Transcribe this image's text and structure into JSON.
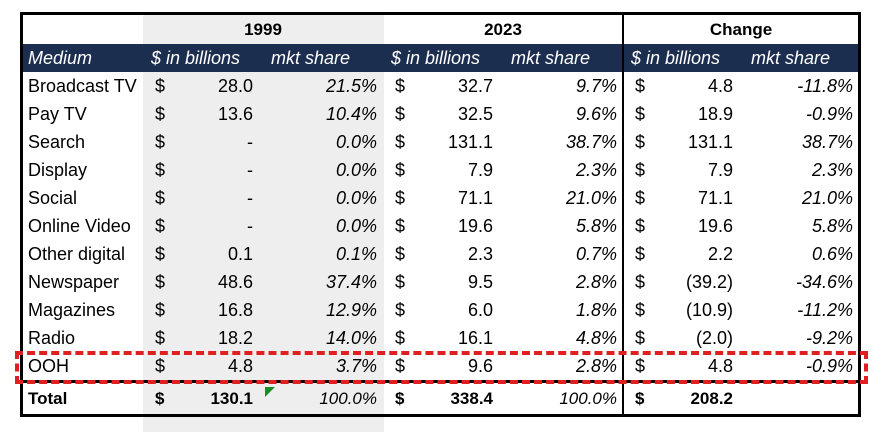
{
  "groups": {
    "y1999": "1999",
    "y2023": "2023",
    "change": "Change"
  },
  "subheaders": {
    "medium": "Medium",
    "b1999": "$ in billions",
    "s1999": "mkt share",
    "b2023": "$ in billions",
    "s2023": "mkt share",
    "bchg": "$ in billions",
    "schg": "mkt share"
  },
  "currency": "$",
  "rows": [
    {
      "medium": "Broadcast TV",
      "v1999": "28.0",
      "s1999": "21.5%",
      "v2023": "32.7",
      "s2023": "9.7%",
      "vchg": "4.8",
      "schg": "-11.8%"
    },
    {
      "medium": "Pay TV",
      "v1999": "13.6",
      "s1999": "10.4%",
      "v2023": "32.5",
      "s2023": "9.6%",
      "vchg": "18.9",
      "schg": "-0.9%"
    },
    {
      "medium": "Search",
      "v1999": "-",
      "s1999": "0.0%",
      "v2023": "131.1",
      "s2023": "38.7%",
      "vchg": "131.1",
      "schg": "38.7%"
    },
    {
      "medium": "Display",
      "v1999": "-",
      "s1999": "0.0%",
      "v2023": "7.9",
      "s2023": "2.3%",
      "vchg": "7.9",
      "schg": "2.3%"
    },
    {
      "medium": "Social",
      "v1999": "-",
      "s1999": "0.0%",
      "v2023": "71.1",
      "s2023": "21.0%",
      "vchg": "71.1",
      "schg": "21.0%"
    },
    {
      "medium": "Online Video",
      "v1999": "-",
      "s1999": "0.0%",
      "v2023": "19.6",
      "s2023": "5.8%",
      "vchg": "19.6",
      "schg": "5.8%"
    },
    {
      "medium": "Other digital",
      "v1999": "0.1",
      "s1999": "0.1%",
      "v2023": "2.3",
      "s2023": "0.7%",
      "vchg": "2.2",
      "schg": "0.6%"
    },
    {
      "medium": "Newspaper",
      "v1999": "48.6",
      "s1999": "37.4%",
      "v2023": "9.5",
      "s2023": "2.8%",
      "vchg": "(39.2)",
      "schg": "-34.6%"
    },
    {
      "medium": "Magazines",
      "v1999": "16.8",
      "s1999": "12.9%",
      "v2023": "6.0",
      "s2023": "1.8%",
      "vchg": "(10.9)",
      "schg": "-11.2%"
    },
    {
      "medium": "Radio",
      "v1999": "18.2",
      "s1999": "14.0%",
      "v2023": "16.1",
      "s2023": "4.8%",
      "vchg": "(2.0)",
      "schg": "-9.2%"
    },
    {
      "medium": "OOH",
      "v1999": "4.8",
      "s1999": "3.7%",
      "v2023": "9.6",
      "s2023": "2.8%",
      "vchg": "4.8",
      "schg": "-0.9%"
    }
  ],
  "total": {
    "medium": "Total",
    "v1999": "130.1",
    "s1999": "100.0%",
    "v2023": "338.4",
    "s2023": "100.0%",
    "vchg": "208.2",
    "schg": ""
  },
  "colors": {
    "header_bg": "#1b2e4f",
    "highlight": "#e02020",
    "shade": "#eeeeee"
  }
}
